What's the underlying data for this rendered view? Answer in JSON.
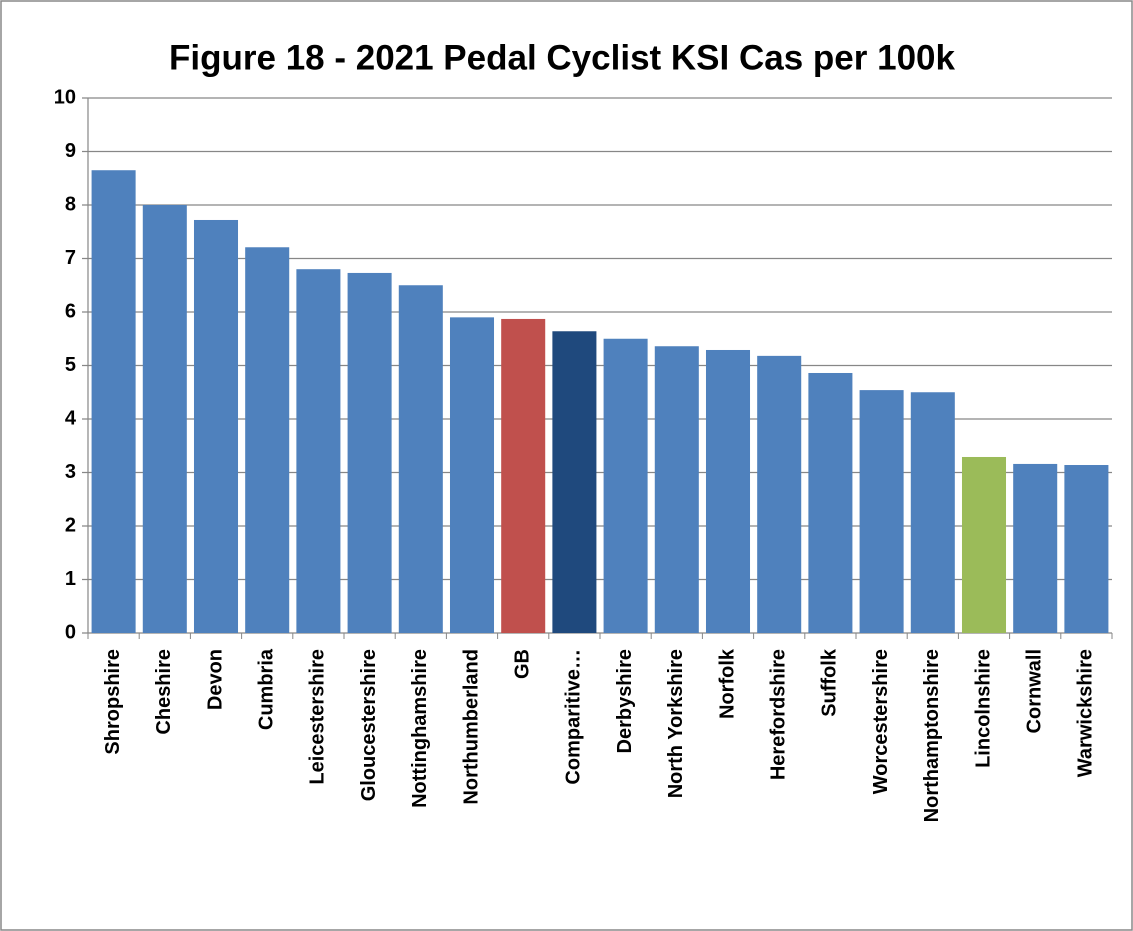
{
  "chart_data": {
    "type": "bar",
    "title": "Figure 18 - 2021 Pedal Cyclist KSI Cas per 100k",
    "categories": [
      "Shropshire",
      "Cheshire",
      "Devon",
      "Cumbria",
      "Leicestershire",
      "Gloucestershire",
      "Nottinghamshire",
      "Northumberland",
      "GB",
      "Comparitive…",
      "Derbyshire",
      "North Yorkshire",
      "Norfolk",
      "Herefordshire",
      "Suffolk",
      "Worcestershire",
      "Northamptonshire",
      "Lincolnshire",
      "Cornwall",
      "Warwickshire"
    ],
    "values": [
      8.65,
      8.0,
      7.72,
      7.21,
      6.8,
      6.73,
      6.5,
      5.9,
      5.87,
      5.64,
      5.5,
      5.36,
      5.29,
      5.18,
      4.86,
      4.54,
      4.5,
      3.29,
      3.16,
      3.14
    ],
    "colors": [
      "#4f81bd",
      "#4f81bd",
      "#4f81bd",
      "#4f81bd",
      "#4f81bd",
      "#4f81bd",
      "#4f81bd",
      "#4f81bd",
      "#c0504d",
      "#1f497d",
      "#4f81bd",
      "#4f81bd",
      "#4f81bd",
      "#4f81bd",
      "#4f81bd",
      "#4f81bd",
      "#4f81bd",
      "#9bbb59",
      "#4f81bd",
      "#4f81bd"
    ],
    "ylim": [
      0,
      10
    ],
    "yticks": [
      0,
      1,
      2,
      3,
      4,
      5,
      6,
      7,
      8,
      9,
      10
    ],
    "grid": true
  }
}
